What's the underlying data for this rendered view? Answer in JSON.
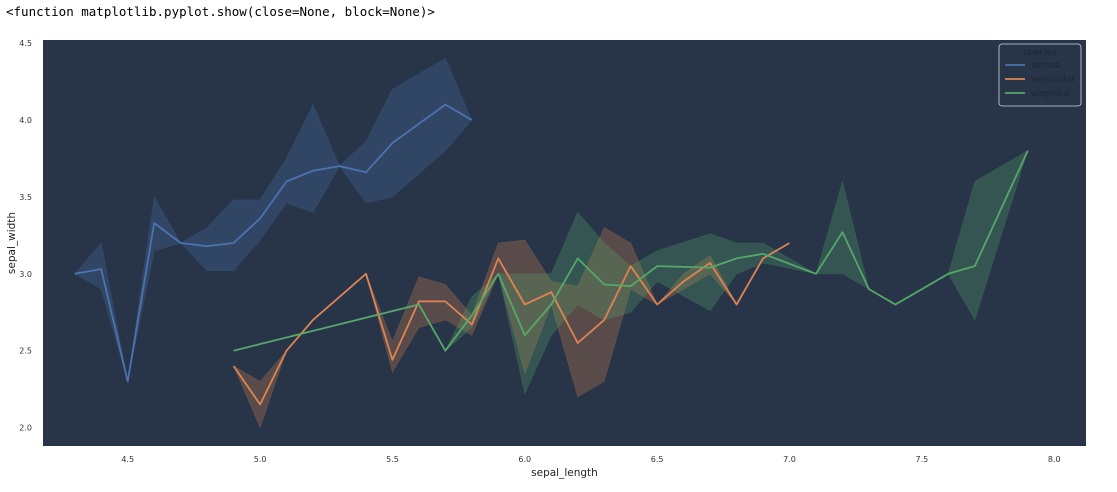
{
  "output_text": "<function matplotlib.pyplot.show(close=None, block=None)>",
  "chart_data": {
    "type": "line",
    "title": "",
    "xlabel": "sepal_length",
    "ylabel": "sepal_width",
    "xlim": [
      4.18,
      8.12
    ],
    "ylim": [
      1.88,
      4.52
    ],
    "xticks": [
      "4.5",
      "5.0",
      "5.5",
      "6.0",
      "6.5",
      "7.0",
      "7.5",
      "8.0"
    ],
    "yticks": [
      "2.0",
      "2.5",
      "3.0",
      "3.5",
      "4.0",
      "4.5"
    ],
    "background": "#283548",
    "grid": false,
    "legend": {
      "title": "species",
      "placement": "top-right",
      "entries": [
        "setosa",
        "versicolor",
        "virginica"
      ]
    },
    "series": [
      {
        "name": "setosa",
        "color": "#4c72b0",
        "x": [
          4.3,
          4.4,
          4.5,
          4.6,
          4.7,
          4.8,
          4.9,
          5.0,
          5.1,
          5.2,
          5.3,
          5.4,
          5.5,
          5.7,
          5.8
        ],
        "y": [
          3.0,
          3.03,
          2.3,
          3.33,
          3.2,
          3.18,
          3.2,
          3.36,
          3.6,
          3.67,
          3.7,
          3.66,
          3.85,
          4.1,
          4.0
        ],
        "ci_low": [
          3.0,
          2.9,
          2.3,
          3.15,
          3.2,
          3.02,
          3.02,
          3.22,
          3.46,
          3.4,
          3.7,
          3.46,
          3.5,
          3.8,
          4.0
        ],
        "ci_high": [
          3.0,
          3.2,
          2.3,
          3.5,
          3.2,
          3.3,
          3.48,
          3.48,
          3.75,
          4.1,
          3.7,
          3.86,
          4.2,
          4.4,
          4.0
        ]
      },
      {
        "name": "versicolor",
        "color": "#dd8452",
        "x": [
          4.9,
          5.0,
          5.1,
          5.2,
          5.4,
          5.5,
          5.6,
          5.7,
          5.8,
          5.9,
          6.0,
          6.1,
          6.2,
          6.3,
          6.4,
          6.5,
          6.6,
          6.7,
          6.8,
          6.9,
          7.0
        ],
        "y": [
          2.4,
          2.15,
          2.5,
          2.7,
          3.0,
          2.44,
          2.82,
          2.82,
          2.67,
          3.1,
          2.8,
          2.88,
          2.55,
          2.7,
          3.05,
          2.8,
          2.95,
          3.07,
          2.8,
          3.1,
          3.2
        ],
        "ci_low": [
          2.4,
          2.0,
          2.5,
          2.7,
          3.0,
          2.36,
          2.65,
          2.7,
          2.6,
          3.0,
          2.35,
          2.8,
          2.2,
          2.3,
          2.9,
          2.8,
          2.9,
          3.0,
          2.8,
          3.1,
          3.2
        ],
        "ci_high": [
          2.4,
          2.3,
          2.5,
          2.7,
          3.0,
          2.56,
          2.98,
          2.93,
          2.73,
          3.2,
          3.22,
          2.95,
          2.92,
          3.3,
          3.2,
          2.8,
          3.0,
          3.12,
          2.8,
          3.1,
          3.2
        ]
      },
      {
        "name": "virginica",
        "color": "#55a868",
        "x": [
          4.9,
          5.6,
          5.7,
          5.8,
          5.9,
          6.0,
          6.1,
          6.2,
          6.3,
          6.4,
          6.5,
          6.7,
          6.8,
          6.9,
          7.1,
          7.2,
          7.3,
          7.4,
          7.6,
          7.7,
          7.9
        ],
        "y": [
          2.5,
          2.8,
          2.5,
          2.73,
          3.0,
          2.6,
          2.8,
          3.1,
          2.93,
          2.92,
          3.05,
          3.04,
          3.1,
          3.13,
          3.0,
          3.27,
          2.9,
          2.8,
          3.0,
          3.05,
          3.8
        ],
        "ci_low": [
          2.5,
          2.8,
          2.5,
          2.65,
          3.0,
          2.22,
          2.6,
          2.8,
          2.7,
          2.75,
          2.95,
          2.76,
          3.0,
          3.07,
          3.0,
          3.0,
          2.9,
          2.8,
          3.0,
          2.7,
          3.8
        ],
        "ci_high": [
          2.5,
          2.8,
          2.5,
          2.85,
          3.0,
          3.0,
          3.0,
          3.4,
          3.2,
          3.05,
          3.15,
          3.26,
          3.2,
          3.2,
          3.0,
          3.6,
          2.9,
          2.8,
          3.0,
          3.6,
          3.8
        ]
      }
    ]
  }
}
